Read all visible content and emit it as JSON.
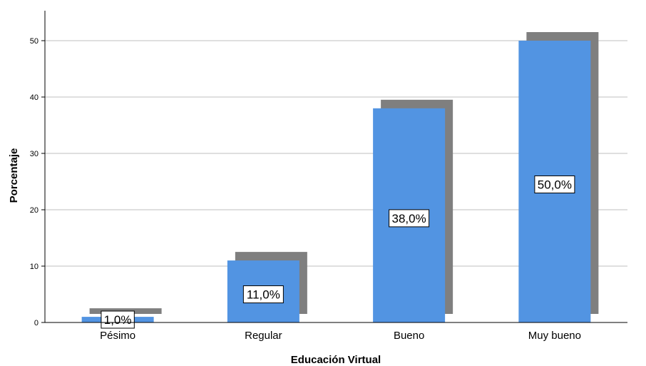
{
  "chart_data": {
    "type": "bar",
    "title": "",
    "xlabel": "Educación Virtual",
    "ylabel": "Porcentaje",
    "categories": [
      "Pésimo",
      "Regular",
      "Bueno",
      "Muy bueno"
    ],
    "values": [
      1.0,
      11.0,
      38.0,
      50.0
    ],
    "data_labels": [
      "1,0%",
      "11,0%",
      "38,0%",
      "50,0%"
    ],
    "yticks": [
      0,
      10,
      20,
      30,
      40,
      50
    ],
    "ylim": [
      0,
      55
    ],
    "grid": "horizontal",
    "bar_style": "3d-shadow"
  },
  "colors": {
    "bar_fill": "#5294E2",
    "bar_shadow": "#7F7F7F",
    "gridline": "#BFBFBF",
    "axis": "#000000",
    "label_box_fill": "#FFFFFF",
    "label_box_border": "#000000"
  }
}
